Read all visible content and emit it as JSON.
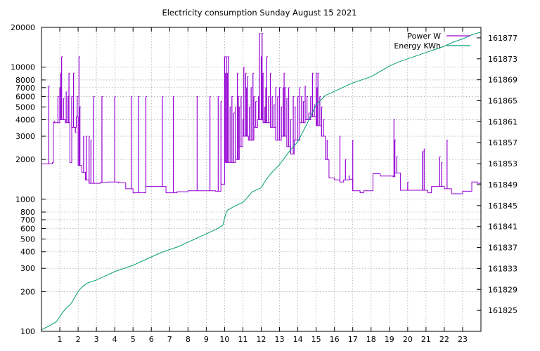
{
  "chart_data": {
    "type": "line",
    "title": "Electricity consumption Sunday August 15 2021",
    "xlabel": "",
    "ylabel": "",
    "y2label": "",
    "grid": true,
    "legend_position": "top-right",
    "x_axis": {
      "range": [
        0,
        24
      ],
      "ticks": [
        1,
        2,
        3,
        4,
        5,
        6,
        7,
        8,
        9,
        10,
        11,
        12,
        13,
        14,
        15,
        16,
        17,
        18,
        19,
        20,
        21,
        22,
        23
      ],
      "labels": [
        "1",
        "2",
        "3",
        "4",
        "5",
        "6",
        "7",
        "8",
        "9",
        "10",
        "11",
        "12",
        "13",
        "14",
        "15",
        "16",
        "17",
        "18",
        "19",
        "20",
        "21",
        "22",
        "23"
      ]
    },
    "y_axis": {
      "scale": "log",
      "range": [
        100,
        20000
      ],
      "ticks": [
        100,
        200,
        300,
        400,
        500,
        600,
        700,
        800,
        1000,
        2000,
        3000,
        4000,
        5000,
        6000,
        7000,
        8000,
        10000,
        20000
      ],
      "labels": [
        "100",
        "200",
        "300",
        "400",
        "500",
        "600",
        "700",
        "800",
        "1000",
        "2000",
        "3000",
        "4000",
        "5000",
        "6000",
        "7000",
        "8000",
        "10000",
        "20000"
      ]
    },
    "y2_axis": {
      "scale": "linear",
      "range": [
        161821,
        161879
      ],
      "ticks": [
        161825,
        161829,
        161833,
        161837,
        161841,
        161845,
        161849,
        161853,
        161857,
        161861,
        161865,
        161869,
        161873,
        161877
      ],
      "labels": [
        "161825",
        "161829",
        "161833",
        "161837",
        "161841",
        "161845",
        "161849",
        "161853",
        "161857",
        "161861",
        "161865",
        "161869",
        "161873",
        "161877"
      ]
    },
    "series": [
      {
        "name": "Power W",
        "axis": "y",
        "color": "#9400d3",
        "baseline": [
          [
            0.0,
            1850
          ],
          [
            0.5,
            1850
          ],
          [
            0.6,
            1900
          ],
          [
            0.65,
            3800
          ],
          [
            1.0,
            4000
          ],
          [
            1.3,
            3800
          ],
          [
            1.55,
            1900
          ],
          [
            1.65,
            3500
          ],
          [
            1.9,
            4200
          ],
          [
            2.0,
            1800
          ],
          [
            2.2,
            1600
          ],
          [
            2.4,
            1400
          ],
          [
            2.6,
            1320
          ],
          [
            3.2,
            1340
          ],
          [
            3.6,
            1350
          ],
          [
            4.2,
            1330
          ],
          [
            4.6,
            1200
          ],
          [
            5.0,
            1120
          ],
          [
            5.6,
            1120
          ],
          [
            5.7,
            1250
          ],
          [
            6.7,
            1250
          ],
          [
            6.8,
            1120
          ],
          [
            7.4,
            1140
          ],
          [
            8.0,
            1160
          ],
          [
            8.9,
            1160
          ],
          [
            9.5,
            1150
          ],
          [
            9.8,
            1300
          ],
          [
            10.0,
            1900
          ],
          [
            10.3,
            1900
          ],
          [
            10.6,
            2000
          ],
          [
            10.8,
            2500
          ],
          [
            11.0,
            3000
          ],
          [
            11.3,
            2800
          ],
          [
            11.6,
            3500
          ],
          [
            11.8,
            4000
          ],
          [
            12.1,
            3800
          ],
          [
            12.5,
            3500
          ],
          [
            12.8,
            2800
          ],
          [
            13.1,
            3000
          ],
          [
            13.4,
            2500
          ],
          [
            13.6,
            2200
          ],
          [
            13.8,
            2800
          ],
          [
            14.1,
            3800
          ],
          [
            14.4,
            4000
          ],
          [
            14.7,
            4200
          ],
          [
            15.0,
            3600
          ],
          [
            15.3,
            3000
          ],
          [
            15.5,
            2000
          ],
          [
            15.7,
            1450
          ],
          [
            16.0,
            1400
          ],
          [
            16.3,
            1350
          ],
          [
            16.5,
            1400
          ],
          [
            16.8,
            1420
          ],
          [
            17.0,
            1160
          ],
          [
            17.4,
            1120
          ],
          [
            17.6,
            1160
          ],
          [
            18.0,
            1160
          ],
          [
            18.1,
            1560
          ],
          [
            18.5,
            1500
          ],
          [
            18.8,
            1500
          ],
          [
            19.2,
            1480
          ],
          [
            19.3,
            1580
          ],
          [
            19.6,
            1170
          ],
          [
            20.4,
            1170
          ],
          [
            21.0,
            1170
          ],
          [
            21.1,
            1120
          ],
          [
            21.3,
            1250
          ],
          [
            21.6,
            1250
          ],
          [
            22.0,
            1200
          ],
          [
            22.4,
            1100
          ],
          [
            22.8,
            1100
          ],
          [
            23.0,
            1150
          ],
          [
            23.4,
            1150
          ],
          [
            23.5,
            1350
          ],
          [
            23.8,
            1320
          ],
          [
            24.0,
            1320
          ]
        ],
        "spikes": [
          [
            0.4,
            7200
          ],
          [
            0.7,
            3900
          ],
          [
            0.9,
            6000
          ],
          [
            1.0,
            7000
          ],
          [
            1.05,
            9000
          ],
          [
            1.1,
            12000
          ],
          [
            1.2,
            5800
          ],
          [
            1.35,
            6500
          ],
          [
            1.45,
            6000
          ],
          [
            1.5,
            9000
          ],
          [
            1.65,
            6000
          ],
          [
            1.75,
            9000
          ],
          [
            1.85,
            3200
          ],
          [
            1.95,
            6000
          ],
          [
            2.05,
            12000
          ],
          [
            2.1,
            5000
          ],
          [
            2.3,
            3000
          ],
          [
            2.45,
            3000
          ],
          [
            2.6,
            3000
          ],
          [
            2.7,
            2800
          ],
          [
            2.85,
            6000
          ],
          [
            3.3,
            6000
          ],
          [
            4.0,
            6000
          ],
          [
            4.9,
            6000
          ],
          [
            5.3,
            6000
          ],
          [
            5.7,
            6000
          ],
          [
            6.6,
            6000
          ],
          [
            7.2,
            6000
          ],
          [
            8.5,
            6000
          ],
          [
            9.2,
            6000
          ],
          [
            9.65,
            6000
          ],
          [
            9.8,
            5500
          ],
          [
            10.0,
            12000
          ],
          [
            10.05,
            9000
          ],
          [
            10.1,
            12000
          ],
          [
            10.15,
            9000
          ],
          [
            10.2,
            12000
          ],
          [
            10.3,
            5000
          ],
          [
            10.4,
            6000
          ],
          [
            10.5,
            4500
          ],
          [
            10.6,
            5000
          ],
          [
            10.7,
            9000
          ],
          [
            10.75,
            6000
          ],
          [
            10.8,
            5000
          ],
          [
            10.9,
            6000
          ],
          [
            11.0,
            4000
          ],
          [
            11.05,
            10000
          ],
          [
            11.15,
            9000
          ],
          [
            11.2,
            7000
          ],
          [
            11.25,
            8500
          ],
          [
            11.35,
            5000
          ],
          [
            11.45,
            7000
          ],
          [
            11.55,
            9000
          ],
          [
            11.6,
            6000
          ],
          [
            11.7,
            5500
          ],
          [
            11.85,
            6000
          ],
          [
            11.9,
            18000
          ],
          [
            12.0,
            12000
          ],
          [
            12.05,
            18000
          ],
          [
            12.1,
            9000
          ],
          [
            12.2,
            5000
          ],
          [
            12.25,
            7000
          ],
          [
            12.3,
            12000
          ],
          [
            12.4,
            6000
          ],
          [
            12.5,
            9000
          ],
          [
            12.6,
            6000
          ],
          [
            12.7,
            5200
          ],
          [
            12.8,
            7000
          ],
          [
            12.9,
            6000
          ],
          [
            13.0,
            7000
          ],
          [
            13.1,
            5000
          ],
          [
            13.2,
            7000
          ],
          [
            13.25,
            9000
          ],
          [
            13.3,
            7000
          ],
          [
            13.4,
            5800
          ],
          [
            13.5,
            7000
          ],
          [
            13.6,
            4000
          ],
          [
            13.75,
            6000
          ],
          [
            13.85,
            5000
          ],
          [
            14.0,
            6000
          ],
          [
            14.1,
            7000
          ],
          [
            14.2,
            6000
          ],
          [
            14.3,
            5500
          ],
          [
            14.4,
            7200
          ],
          [
            14.5,
            6000
          ],
          [
            14.6,
            4500
          ],
          [
            14.7,
            6000
          ],
          [
            14.8,
            9000
          ],
          [
            14.9,
            5200
          ],
          [
            15.0,
            9000
          ],
          [
            15.05,
            7000
          ],
          [
            15.1,
            9000
          ],
          [
            15.2,
            6000
          ],
          [
            15.3,
            5000
          ],
          [
            15.4,
            4000
          ],
          [
            15.6,
            2800
          ],
          [
            16.3,
            3000
          ],
          [
            16.6,
            2000
          ],
          [
            16.8,
            1500
          ],
          [
            17.0,
            2800
          ],
          [
            19.25,
            4000
          ],
          [
            19.3,
            2800
          ],
          [
            19.4,
            2100
          ],
          [
            20.0,
            1350
          ],
          [
            20.8,
            2300
          ],
          [
            20.9,
            2400
          ],
          [
            21.75,
            2100
          ],
          [
            21.85,
            1900
          ],
          [
            22.15,
            2800
          ]
        ]
      },
      {
        "name": "Energy KWh",
        "axis": "y2",
        "color": "#009e73",
        "x": [
          0.0,
          0.4,
          0.8,
          1.0,
          1.2,
          1.4,
          1.6,
          1.8,
          2.0,
          2.2,
          2.5,
          3.0,
          3.5,
          4.0,
          4.5,
          5.0,
          5.5,
          6.0,
          6.5,
          7.0,
          7.5,
          8.0,
          8.5,
          9.0,
          9.5,
          9.9,
          10.0,
          10.1,
          10.2,
          10.5,
          11.0,
          11.2,
          11.5,
          12.0,
          12.2,
          12.5,
          13.0,
          13.5,
          14.0,
          14.5,
          15.0,
          15.5,
          16.0,
          16.5,
          17.0,
          17.5,
          18.0,
          18.5,
          19.0,
          19.5,
          20.0,
          20.5,
          21.0,
          21.5,
          22.0,
          22.5,
          23.0,
          23.5,
          24.0
        ],
        "values": [
          161821.3,
          161822.0,
          161822.8,
          161823.8,
          161824.8,
          161825.6,
          161826.2,
          161827.4,
          161828.6,
          161829.4,
          161830.2,
          161830.8,
          161831.6,
          161832.4,
          161833.0,
          161833.6,
          161834.4,
          161835.2,
          161836.0,
          161836.6,
          161837.2,
          161838.0,
          161838.8,
          161839.6,
          161840.4,
          161841.2,
          161842.6,
          161843.8,
          161844.2,
          161844.8,
          161845.6,
          161846.4,
          161847.6,
          161848.4,
          161849.6,
          161851.0,
          161852.8,
          161855.2,
          161857.2,
          161860.6,
          161864.2,
          161866.0,
          161866.8,
          161867.6,
          161868.4,
          161869.0,
          161869.6,
          161870.6,
          161871.6,
          161872.4,
          161873.0,
          161873.6,
          161874.2,
          161874.8,
          161875.4,
          161876.2,
          161876.8,
          161877.6,
          161878.1
        ]
      }
    ]
  }
}
